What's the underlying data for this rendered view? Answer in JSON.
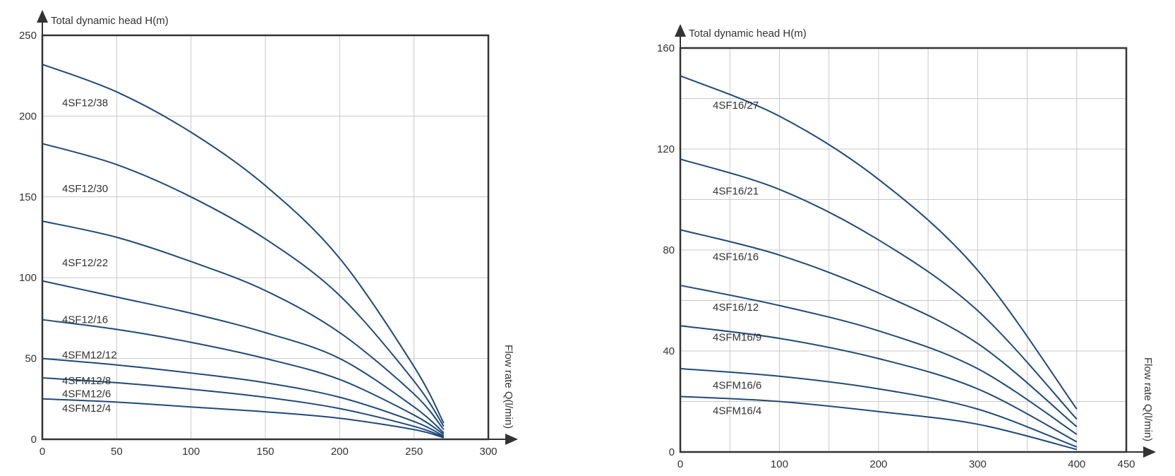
{
  "colors": {
    "curve": "#1e4a7a",
    "grid": "#c8c8c8",
    "axis": "#333333"
  },
  "chart_data": [
    {
      "type": "line",
      "title": "",
      "ylabel": "Total dynamic head H(m)",
      "xlabel": "Flow rate Q(l/min)",
      "xlim": [
        0,
        300
      ],
      "ylim": [
        0,
        250
      ],
      "xticks": [
        0,
        50,
        100,
        150,
        200,
        250,
        300
      ],
      "yticks": [
        0,
        50,
        100,
        150,
        200,
        250
      ],
      "grid": true,
      "series": [
        {
          "name": "4SF12/38",
          "x": [
            0,
            50,
            100,
            150,
            200,
            250,
            270
          ],
          "y": [
            232,
            215,
            190,
            157,
            112,
            45,
            10
          ]
        },
        {
          "name": "4SF12/30",
          "x": [
            0,
            50,
            100,
            150,
            200,
            250,
            270
          ],
          "y": [
            183,
            170,
            150,
            124,
            89,
            36,
            8
          ]
        },
        {
          "name": "4SF12/22",
          "x": [
            0,
            50,
            100,
            150,
            200,
            250,
            270
          ],
          "y": [
            135,
            125,
            110,
            92,
            66,
            28,
            6
          ]
        },
        {
          "name": "4SF12/16",
          "x": [
            0,
            50,
            100,
            150,
            200,
            250,
            270
          ],
          "y": [
            98,
            88,
            78,
            66,
            50,
            20,
            4
          ]
        },
        {
          "name": "4SFM12/12",
          "x": [
            0,
            50,
            100,
            150,
            200,
            250,
            270
          ],
          "y": [
            74,
            68,
            60,
            50,
            37,
            15,
            3
          ]
        },
        {
          "name": "4SFM12/8",
          "x": [
            0,
            50,
            100,
            150,
            200,
            250,
            270
          ],
          "y": [
            50,
            46,
            41,
            35,
            26,
            11,
            2
          ]
        },
        {
          "name": "4SFM12/6",
          "x": [
            0,
            50,
            100,
            150,
            200,
            250,
            270
          ],
          "y": [
            38,
            35,
            31,
            26,
            19,
            8,
            1.5
          ]
        },
        {
          "name": "4SFM12/4",
          "x": [
            0,
            50,
            100,
            150,
            200,
            250,
            270
          ],
          "y": [
            25,
            23,
            20,
            17,
            13,
            6,
            1
          ]
        }
      ]
    },
    {
      "type": "line",
      "title": "",
      "ylabel": "Total dynamic head H(m)",
      "xlabel": "Flow rate Q(l/min)",
      "xlim": [
        0,
        450
      ],
      "ylim": [
        0,
        160
      ],
      "xticks": [
        0,
        100,
        200,
        300,
        400,
        450
      ],
      "yticks": [
        0,
        40,
        80,
        120,
        160
      ],
      "grid": true,
      "xgrid_step": 50,
      "ygrid_step": 20,
      "series": [
        {
          "name": "4SF16/27",
          "x": [
            0,
            100,
            200,
            300,
            400
          ],
          "y": [
            149,
            133,
            108,
            72,
            17
          ]
        },
        {
          "name": "4SF16/21",
          "x": [
            0,
            100,
            200,
            300,
            400
          ],
          "y": [
            116,
            104,
            84,
            56,
            13
          ]
        },
        {
          "name": "4SF16/16",
          "x": [
            0,
            100,
            200,
            300,
            400
          ],
          "y": [
            88,
            78,
            63,
            43,
            10
          ]
        },
        {
          "name": "4SF16/12",
          "x": [
            0,
            100,
            200,
            300,
            400
          ],
          "y": [
            66,
            58,
            48,
            33,
            7
          ]
        },
        {
          "name": "4SFM16/9",
          "x": [
            0,
            100,
            200,
            300,
            400
          ],
          "y": [
            50,
            45,
            37,
            25,
            4
          ]
        },
        {
          "name": "4SFM16/6",
          "x": [
            0,
            100,
            200,
            300,
            400
          ],
          "y": [
            33,
            30,
            25,
            17,
            2
          ]
        },
        {
          "name": "4SFM16/4",
          "x": [
            0,
            100,
            200,
            300,
            400
          ],
          "y": [
            22,
            20,
            16,
            11,
            1
          ]
        }
      ]
    }
  ]
}
